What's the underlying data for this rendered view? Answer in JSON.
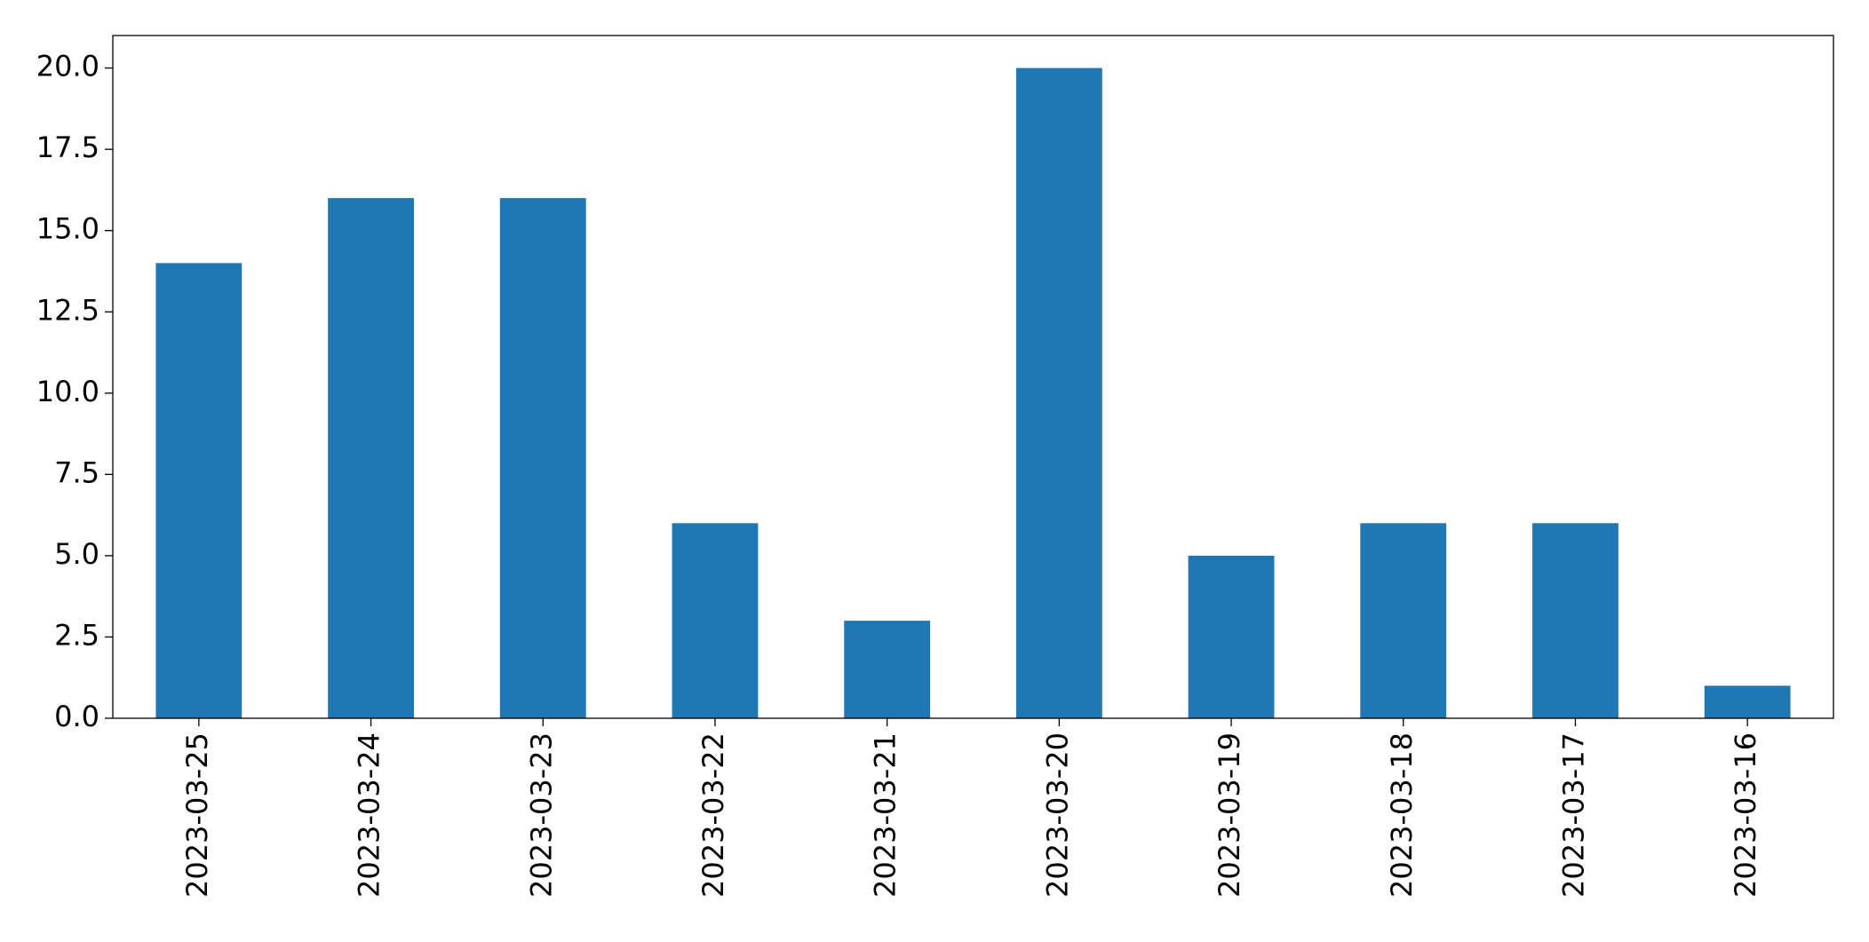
{
  "chart_data": {
    "type": "bar",
    "categories": [
      "2023-03-25",
      "2023-03-24",
      "2023-03-23",
      "2023-03-22",
      "2023-03-21",
      "2023-03-20",
      "2023-03-19",
      "2023-03-18",
      "2023-03-17",
      "2023-03-16"
    ],
    "values": [
      14,
      16,
      16,
      6,
      3,
      20,
      5,
      6,
      6,
      1
    ],
    "color": "#1f77b4",
    "ylim": [
      0,
      21
    ],
    "yticks": [
      {
        "value": 0,
        "label": "0.0"
      },
      2.5,
      {
        "value": 5,
        "label": "5.0"
      },
      7.5,
      {
        "value": 10,
        "label": "10.0"
      },
      12.5,
      {
        "value": 15,
        "label": "15.0"
      },
      17.5,
      {
        "value": 20,
        "label": "20.0"
      }
    ],
    "grid": false
  }
}
